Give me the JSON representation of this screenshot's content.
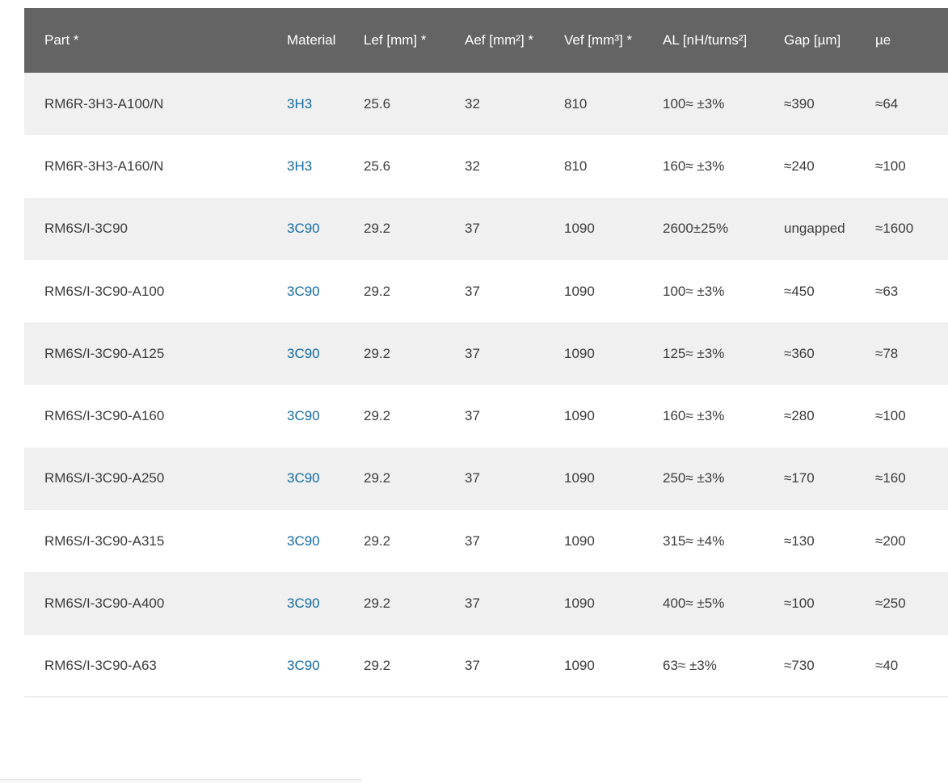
{
  "colors": {
    "header_bg": "#646464",
    "header_text": "#ffffff",
    "row_alt_bg": "#f0f0f0",
    "row_bg": "#ffffff",
    "body_text": "#3c3c3c",
    "link": "#156ba5",
    "table_bottom_border": "#d9d9d9"
  },
  "table": {
    "columns": [
      {
        "label": "Part *"
      },
      {
        "label": "Material"
      },
      {
        "label": "Lef [mm] *"
      },
      {
        "label": "Aef [mm²] *"
      },
      {
        "label": "Vef [mm³] *"
      },
      {
        "label": "AL [nH/turns²]"
      },
      {
        "label": "Gap [µm]"
      },
      {
        "label": "µe"
      }
    ],
    "rows": [
      {
        "part": "RM6R-3H3-A100/N",
        "material": "3H3",
        "lef": "25.6",
        "aef": "32",
        "vef": "810",
        "al": "100≈ ±3%",
        "gap": "≈390",
        "ue": "≈64"
      },
      {
        "part": "RM6R-3H3-A160/N",
        "material": "3H3",
        "lef": "25.6",
        "aef": "32",
        "vef": "810",
        "al": "160≈ ±3%",
        "gap": "≈240",
        "ue": "≈100"
      },
      {
        "part": "RM6S/I-3C90",
        "material": "3C90",
        "lef": "29.2",
        "aef": "37",
        "vef": "1090",
        "al": "2600±25%",
        "gap": "ungapped",
        "ue": "≈1600"
      },
      {
        "part": "RM6S/I-3C90-A100",
        "material": "3C90",
        "lef": "29.2",
        "aef": "37",
        "vef": "1090",
        "al": "100≈ ±3%",
        "gap": "≈450",
        "ue": "≈63"
      },
      {
        "part": "RM6S/I-3C90-A125",
        "material": "3C90",
        "lef": "29.2",
        "aef": "37",
        "vef": "1090",
        "al": "125≈ ±3%",
        "gap": "≈360",
        "ue": "≈78"
      },
      {
        "part": "RM6S/I-3C90-A160",
        "material": "3C90",
        "lef": "29.2",
        "aef": "37",
        "vef": "1090",
        "al": "160≈ ±3%",
        "gap": "≈280",
        "ue": "≈100"
      },
      {
        "part": "RM6S/I-3C90-A250",
        "material": "3C90",
        "lef": "29.2",
        "aef": "37",
        "vef": "1090",
        "al": "250≈ ±3%",
        "gap": "≈170",
        "ue": "≈160"
      },
      {
        "part": "RM6S/I-3C90-A315",
        "material": "3C90",
        "lef": "29.2",
        "aef": "37",
        "vef": "1090",
        "al": "315≈ ±4%",
        "gap": "≈130",
        "ue": "≈200"
      },
      {
        "part": "RM6S/I-3C90-A400",
        "material": "3C90",
        "lef": "29.2",
        "aef": "37",
        "vef": "1090",
        "al": "400≈ ±5%",
        "gap": "≈100",
        "ue": "≈250"
      },
      {
        "part": "RM6S/I-3C90-A63",
        "material": "3C90",
        "lef": "29.2",
        "aef": "37",
        "vef": "1090",
        "al": "63≈ ±3%",
        "gap": "≈730",
        "ue": "≈40"
      }
    ]
  }
}
